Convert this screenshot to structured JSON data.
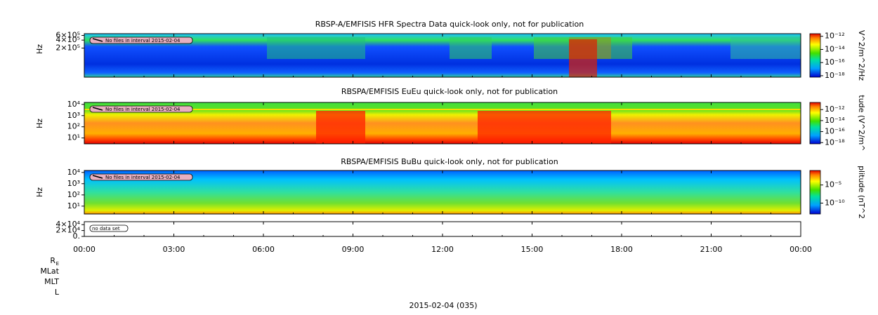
{
  "chart_data": [
    {
      "type": "spectrogram",
      "title": "RBSP-A/EMFISIS  HFR Spectra Data quick-look only, not for publication",
      "ylabel": "Hz",
      "log_y": true,
      "ylim": [
        16000,
        700000
      ],
      "yticks": [
        {
          "value": 600000,
          "label": "6×10⁵"
        },
        {
          "value": 400000,
          "label": "4×10⁵"
        },
        {
          "value": 200000,
          "label": "2×10⁵"
        }
      ],
      "note": "No files in interval 2015-02-04",
      "colorbar_label": "V^2/m^2/Hz",
      "log_c": true,
      "clim": [
        6e-19,
        2.5e-12
      ],
      "cticks": [
        {
          "value": 1e-12,
          "label": "10⁻¹²"
        },
        {
          "value": 1e-14,
          "label": "10⁻¹⁴"
        },
        {
          "value": 1e-16,
          "label": "10⁻¹⁶"
        },
        {
          "value": 1e-18,
          "label": "10⁻¹⁸"
        }
      ]
    },
    {
      "type": "spectrogram",
      "title": "RBSPA/EMFISIS  EuEu quick-look only, not for publication",
      "ylabel": "Hz",
      "log_y": true,
      "ylim": [
        3,
        15000
      ],
      "yticks": [
        {
          "value": 10000,
          "label": "10⁴"
        },
        {
          "value": 1000,
          "label": "10³"
        },
        {
          "value": 100,
          "label": "10²"
        },
        {
          "value": 10,
          "label": "10¹"
        }
      ],
      "note": "No files in interval 2015-02-04",
      "colorbar_label": "tude (V^2/m^",
      "log_c": true,
      "clim": [
        6e-19,
        2e-11
      ],
      "cticks": [
        {
          "value": 1e-12,
          "label": "10⁻¹²"
        },
        {
          "value": 1e-14,
          "label": "10⁻¹⁴"
        },
        {
          "value": 1e-16,
          "label": "10⁻¹⁶"
        },
        {
          "value": 1e-18,
          "label": "10⁻¹⁸"
        }
      ]
    },
    {
      "type": "spectrogram",
      "title": "RBSPA/EMFISIS  BuBu quick-look only, not for publication",
      "ylabel": "Hz",
      "log_y": true,
      "ylim": [
        2,
        15000
      ],
      "yticks": [
        {
          "value": 10000,
          "label": "10⁴"
        },
        {
          "value": 1000,
          "label": "10³"
        },
        {
          "value": 100,
          "label": "10²"
        },
        {
          "value": 10,
          "label": "10¹"
        }
      ],
      "note": "No files in interval 2015-02-04",
      "colorbar_label": "plitude (nT^2",
      "log_c": true,
      "clim": [
        1e-13,
        0.1
      ],
      "cticks": [
        {
          "value": 1e-05,
          "label": "10⁻⁵"
        },
        {
          "value": 1e-10,
          "label": "10⁻¹⁰"
        }
      ]
    },
    {
      "type": "empty",
      "log_y": false,
      "ylim": [
        0,
        50000
      ],
      "yticks": [
        {
          "value": 40000,
          "label": "4×10⁴"
        },
        {
          "value": 20000,
          "label": "2×10⁴"
        },
        {
          "value": 0,
          "label": "0."
        }
      ],
      "note": "no data set"
    }
  ],
  "x_axis": {
    "xlim": [
      0,
      24
    ],
    "xticks": [
      {
        "value": 0,
        "label": "00:00"
      },
      {
        "value": 3,
        "label": "03:00"
      },
      {
        "value": 6,
        "label": "06:00"
      },
      {
        "value": 9,
        "label": "09:00"
      },
      {
        "value": 12,
        "label": "12:00"
      },
      {
        "value": 15,
        "label": "15:00"
      },
      {
        "value": 18,
        "label": "18:00"
      },
      {
        "value": 21,
        "label": "21:00"
      },
      {
        "value": 24,
        "label": "00:00"
      }
    ]
  },
  "ephemeris_labels": [
    {
      "text": "R",
      "subscript": "E"
    },
    {
      "text": "MLat"
    },
    {
      "text": "MLT"
    },
    {
      "text": "L"
    }
  ],
  "footer": "2015-02-04 (035)"
}
